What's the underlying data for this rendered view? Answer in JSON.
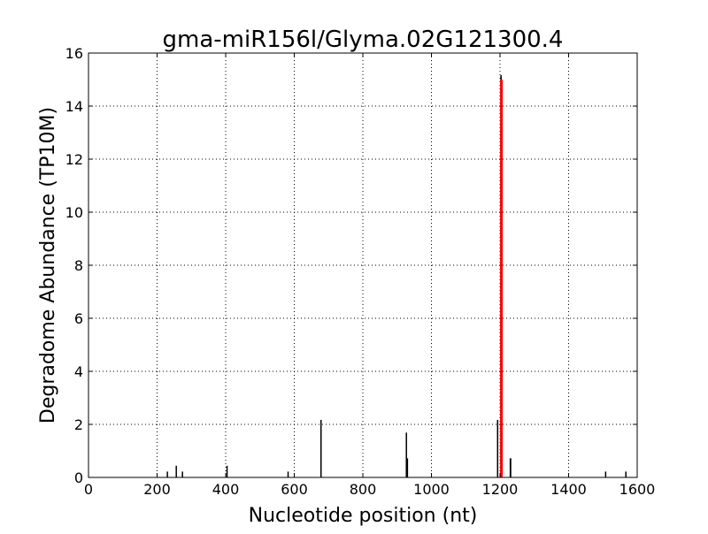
{
  "chart_data": {
    "type": "bar",
    "title": "gma-miR156l/Glyma.02G121300.4",
    "xlabel": "Nucleotide position (nt)",
    "ylabel": "Degradome Abundance (TP10M)",
    "xlim": [
      0,
      1600
    ],
    "ylim": [
      0,
      16
    ],
    "xticks": [
      0,
      200,
      400,
      600,
      800,
      1000,
      1200,
      1400,
      1600
    ],
    "yticks": [
      0,
      2,
      4,
      6,
      8,
      10,
      12,
      14,
      16
    ],
    "grid": true,
    "series": [
      {
        "color": "#000000",
        "points": [
          {
            "x": 230,
            "y": 0.22
          },
          {
            "x": 256,
            "y": 0.44
          },
          {
            "x": 274,
            "y": 0.22
          },
          {
            "x": 404,
            "y": 0.44
          },
          {
            "x": 582,
            "y": 0.22
          },
          {
            "x": 678,
            "y": 2.17
          },
          {
            "x": 927,
            "y": 1.69
          },
          {
            "x": 930,
            "y": 0.72
          },
          {
            "x": 1193,
            "y": 2.17
          },
          {
            "x": 1203,
            "y": 15.17
          },
          {
            "x": 1230,
            "y": 0.72
          },
          {
            "x": 1231,
            "y": 0.72
          },
          {
            "x": 1508,
            "y": 0.22
          },
          {
            "x": 1567,
            "y": 0.22
          }
        ]
      },
      {
        "color": "#ff0000",
        "points": [
          {
            "x": 1204,
            "y": 15.0
          }
        ]
      }
    ]
  }
}
